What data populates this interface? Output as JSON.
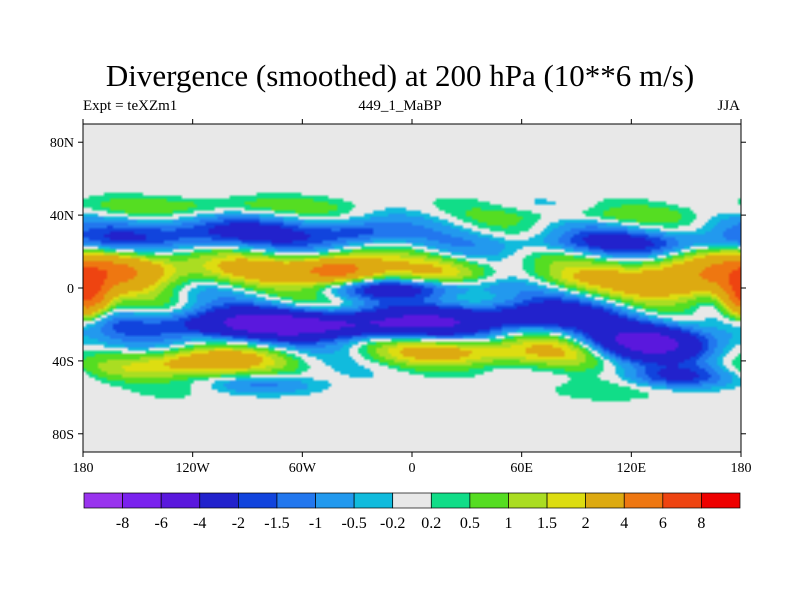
{
  "chart_data": {
    "type": "heatmap",
    "title": "Divergence (smoothed) at 200 hPa (10**6 m/s)",
    "subtitle_left": "Expt = teXZm1",
    "subtitle_center": "449_1_MaBP",
    "subtitle_right": "JJA",
    "xlabel": "",
    "ylabel": "",
    "xlim": [
      -180,
      180
    ],
    "ylim": [
      -90,
      90
    ],
    "x_ticks": [
      {
        "value": -180,
        "label": "180"
      },
      {
        "value": -120,
        "label": "120W"
      },
      {
        "value": -60,
        "label": "60W"
      },
      {
        "value": 0,
        "label": "0"
      },
      {
        "value": 60,
        "label": "60E"
      },
      {
        "value": 120,
        "label": "120E"
      },
      {
        "value": 180,
        "label": "180"
      }
    ],
    "y_ticks": [
      {
        "value": 80,
        "label": "80N"
      },
      {
        "value": 40,
        "label": "40N"
      },
      {
        "value": 0,
        "label": "0"
      },
      {
        "value": -40,
        "label": "40S"
      },
      {
        "value": -80,
        "label": "80S"
      }
    ],
    "contour_levels": [
      -8,
      -6,
      -4,
      -2,
      -1.5,
      -1,
      -0.5,
      -0.2,
      0.2,
      0.5,
      1,
      1.5,
      2,
      4,
      6,
      8
    ],
    "colorbar_colors": [
      "#9933ee",
      "#7a22ee",
      "#5a18dd",
      "#2222cc",
      "#1144dd",
      "#2277ee",
      "#2299ee",
      "#11bbdd",
      "#e8e8e8",
      "#11dd88",
      "#55dd22",
      "#aadd22",
      "#dddd11",
      "#ddaa11",
      "#ee7711",
      "#ee4411",
      "#ee0000"
    ],
    "field_description": "Upper-level divergence: positive (warm) bands near equator and southern subtropics, negative (blue) band around 10S-30S, near-zero (grey) poleward of 50 deg.",
    "features": [
      {
        "lat": 30,
        "lon": -110,
        "value": -2.5,
        "sx": 40,
        "sy": 6
      },
      {
        "lat": 30,
        "lon": -30,
        "value": -2,
        "sx": 20,
        "sy": 5
      },
      {
        "lat": 25,
        "lon": 120,
        "value": -2,
        "sx": 50,
        "sy": 5
      },
      {
        "lat": 45,
        "lon": -110,
        "value": 0.8,
        "sx": 60,
        "sy": 4
      },
      {
        "lat": 40,
        "lon": 100,
        "value": 0.6,
        "sx": 40,
        "sy": 3
      },
      {
        "lat": 10,
        "lon": -160,
        "value": 4,
        "sx": 25,
        "sy": 7
      },
      {
        "lat": 10,
        "lon": -80,
        "value": 2,
        "sx": 30,
        "sy": 6
      },
      {
        "lat": 10,
        "lon": -40,
        "value": 5,
        "sx": 15,
        "sy": 5
      },
      {
        "lat": 10,
        "lon": 20,
        "value": 1.5,
        "sx": 30,
        "sy": 6
      },
      {
        "lat": 5,
        "lon": 150,
        "value": 4,
        "sx": 25,
        "sy": 8
      },
      {
        "lat": 5,
        "lon": 90,
        "value": 1.2,
        "sx": 20,
        "sy": 5
      },
      {
        "lat": -5,
        "lon": -178,
        "value": 6,
        "sx": 8,
        "sy": 8
      },
      {
        "lat": -20,
        "lon": -90,
        "value": -4,
        "sx": 40,
        "sy": 6
      },
      {
        "lat": -20,
        "lon": -20,
        "value": -3.5,
        "sx": 40,
        "sy": 5
      },
      {
        "lat": -15,
        "lon": 60,
        "value": -3,
        "sx": 40,
        "sy": 6
      },
      {
        "lat": -30,
        "lon": 130,
        "value": -5,
        "sx": 25,
        "sy": 7
      },
      {
        "lat": 0,
        "lon": 0,
        "value": -2.5,
        "sx": 30,
        "sy": 4
      },
      {
        "lat": -40,
        "lon": -110,
        "value": 3,
        "sx": 25,
        "sy": 5
      },
      {
        "lat": -35,
        "lon": 20,
        "value": 2.5,
        "sx": 25,
        "sy": 5
      },
      {
        "lat": -35,
        "lon": 80,
        "value": 2,
        "sx": 25,
        "sy": 6
      },
      {
        "lat": -45,
        "lon": -150,
        "value": 1,
        "sx": 25,
        "sy": 5
      },
      {
        "lat": -50,
        "lon": 145,
        "value": -2.5,
        "sx": 20,
        "sy": 5
      },
      {
        "lat": -55,
        "lon": -80,
        "value": -2,
        "sx": 20,
        "sy": 4
      },
      {
        "lat": -60,
        "lon": -130,
        "value": 1,
        "sx": 20,
        "sy": 5
      },
      {
        "lat": -60,
        "lon": 110,
        "value": 1.5,
        "sx": 25,
        "sy": 6
      }
    ]
  }
}
